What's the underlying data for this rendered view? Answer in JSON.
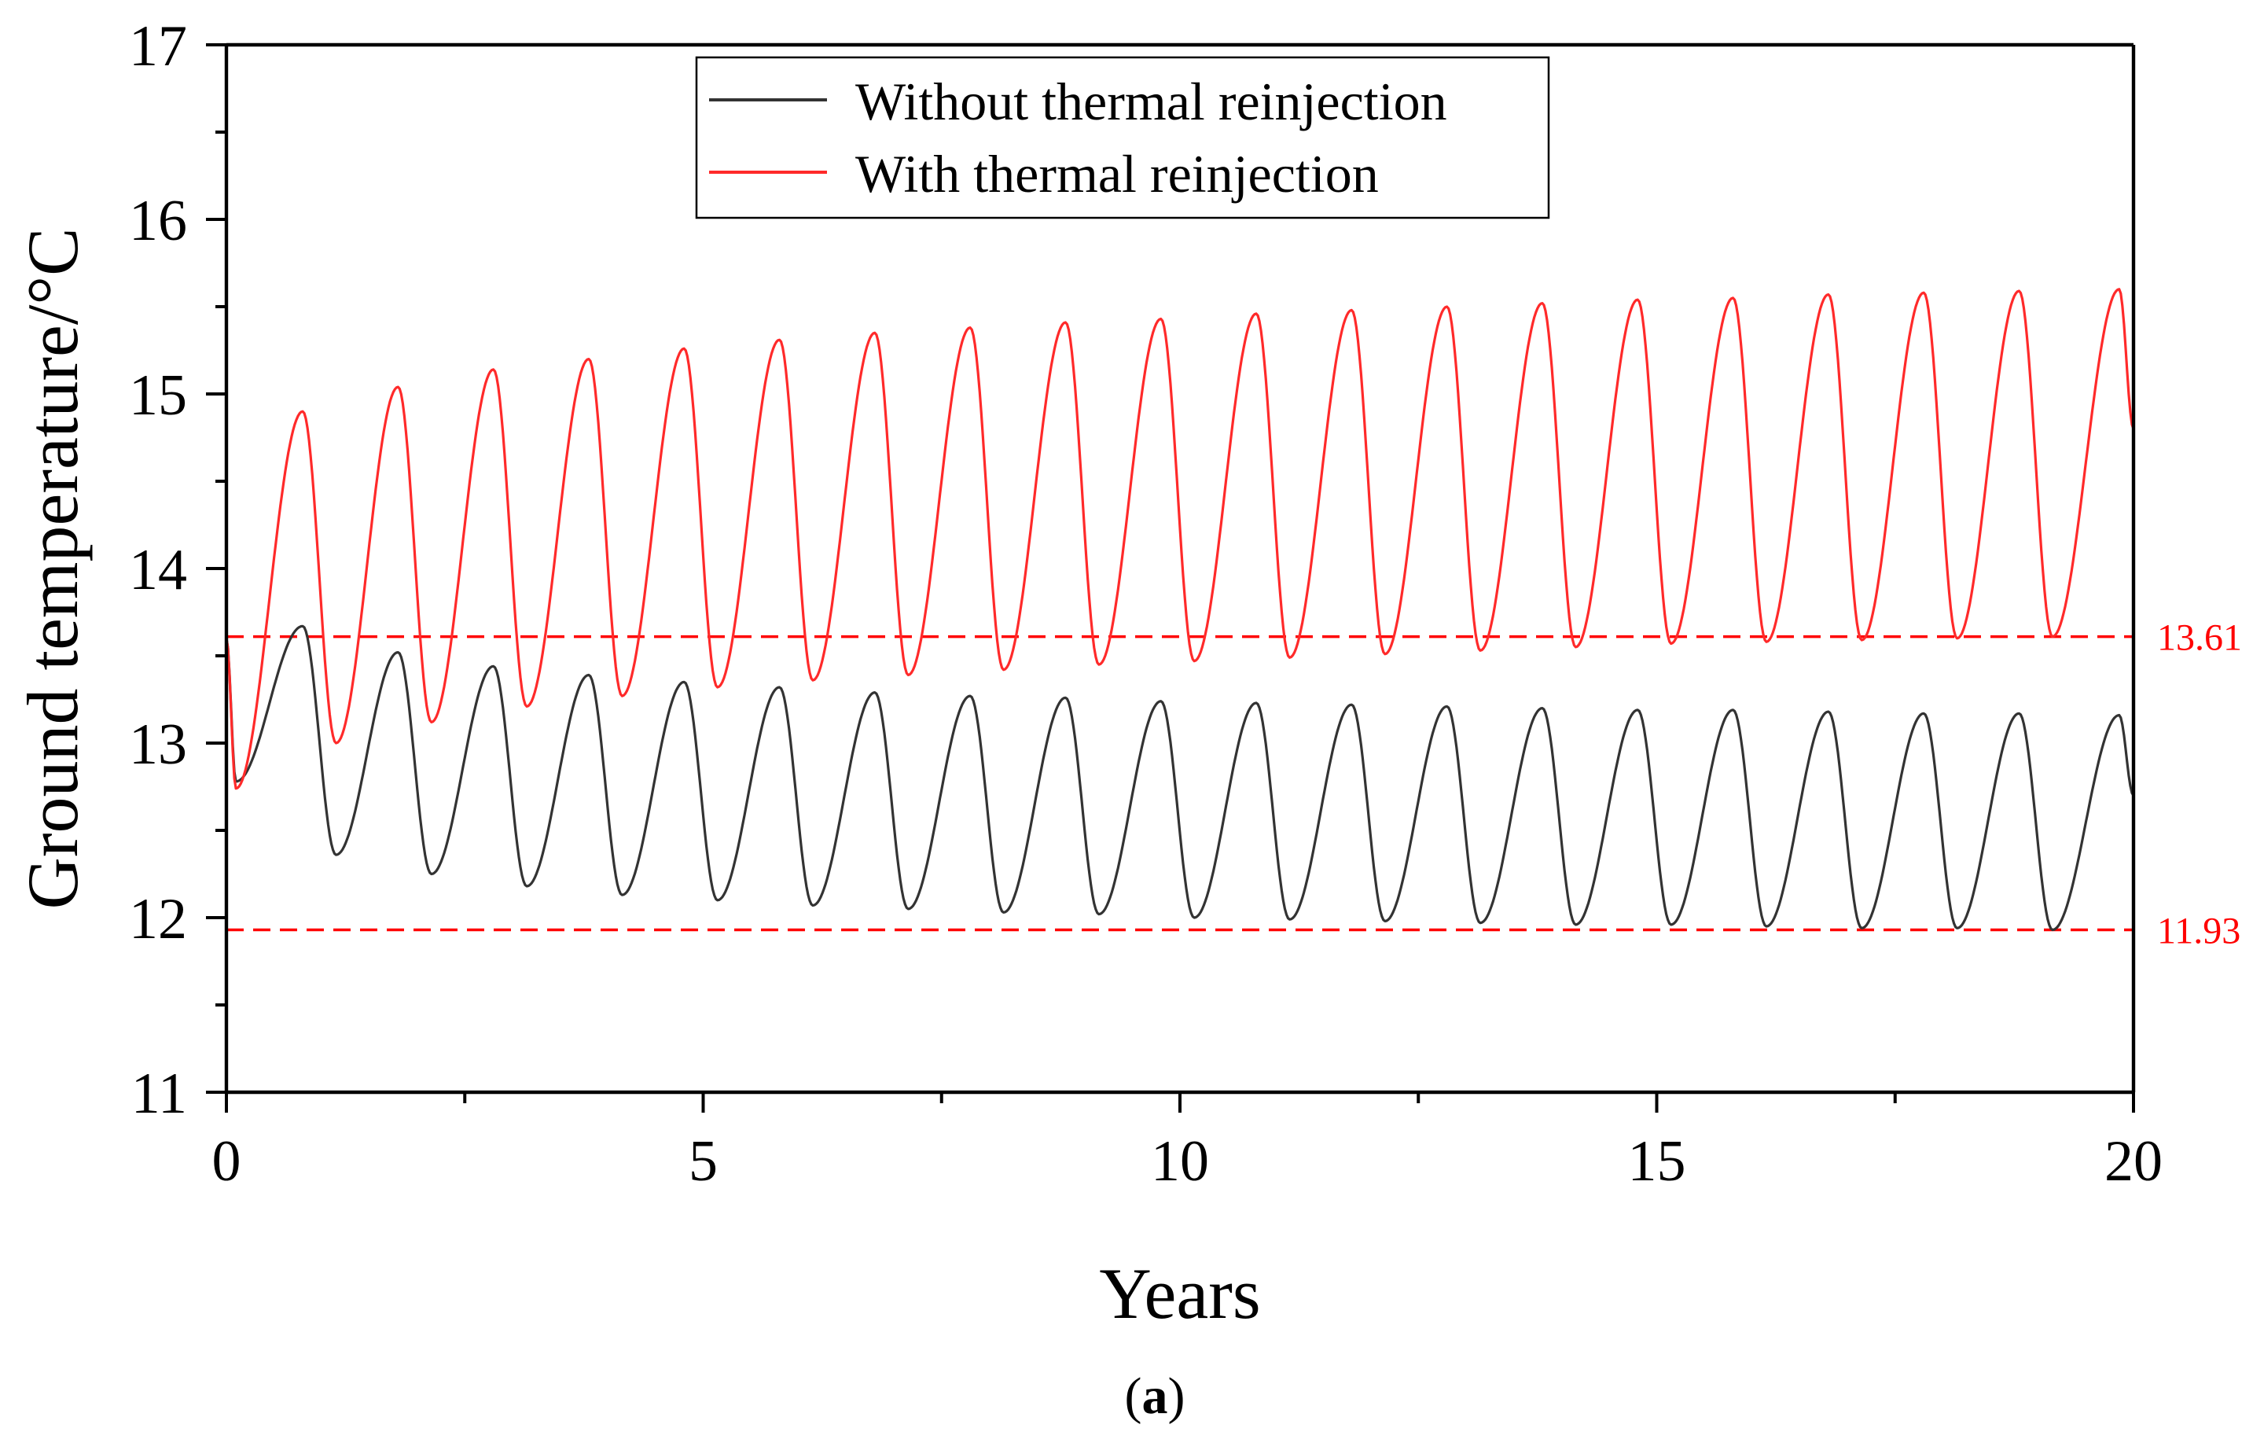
{
  "chart_data": {
    "type": "line",
    "xlabel": "Years",
    "ylabel": "Ground temperature/°C",
    "xlim": [
      0,
      20
    ],
    "ylim": [
      11,
      17
    ],
    "xticks": [
      0,
      5,
      10,
      15,
      20
    ],
    "yticks": [
      11,
      12,
      13,
      14,
      15,
      16,
      17
    ],
    "grid": false,
    "legend_position": "top-center",
    "panel_label": {
      "open": "(",
      "letter": "a",
      "close": ")"
    },
    "reference_lines": [
      {
        "y": 13.61,
        "label": "13.61",
        "color": "#ff0000",
        "style": "dashed"
      },
      {
        "y": 11.93,
        "label": "11.93",
        "color": "#ff0000",
        "style": "dashed"
      }
    ],
    "series": [
      {
        "name": "Without thermal reinjection",
        "color": "#333333",
        "start": 13.6,
        "end": 12.7,
        "annual_peak_years": [
          0.8,
          1.8,
          2.8,
          3.8,
          4.8,
          5.8,
          6.8,
          7.8,
          8.8,
          9.8,
          10.8,
          11.8,
          12.8,
          13.8,
          14.8,
          15.8,
          16.8,
          17.8,
          18.8,
          19.85
        ],
        "annual_peaks": [
          13.67,
          13.52,
          13.44,
          13.39,
          13.35,
          13.32,
          13.29,
          13.27,
          13.26,
          13.24,
          13.23,
          13.22,
          13.21,
          13.2,
          13.19,
          13.19,
          13.18,
          13.17,
          13.17,
          13.16
        ],
        "annual_min_years": [
          0.1,
          1.15,
          2.15,
          3.15,
          4.15,
          5.15,
          6.15,
          7.15,
          8.15,
          9.15,
          10.15,
          11.15,
          12.15,
          13.15,
          14.15,
          15.15,
          16.15,
          17.15,
          18.15,
          19.15
        ],
        "annual_minima": [
          12.78,
          12.36,
          12.25,
          12.18,
          12.13,
          12.1,
          12.07,
          12.05,
          12.03,
          12.02,
          12.0,
          11.99,
          11.98,
          11.97,
          11.96,
          11.96,
          11.95,
          11.94,
          11.94,
          11.93
        ]
      },
      {
        "name": "With thermal reinjection",
        "color": "#ff2a2a",
        "start": 13.6,
        "end": 14.8,
        "annual_peak_years": [
          0.8,
          1.8,
          2.8,
          3.8,
          4.8,
          5.8,
          6.8,
          7.8,
          8.8,
          9.8,
          10.8,
          11.8,
          12.8,
          13.8,
          14.8,
          15.8,
          16.8,
          17.8,
          18.8,
          19.85
        ],
        "annual_peaks": [
          14.9,
          15.04,
          15.14,
          15.2,
          15.26,
          15.31,
          15.35,
          15.38,
          15.41,
          15.43,
          15.46,
          15.48,
          15.5,
          15.52,
          15.54,
          15.55,
          15.57,
          15.58,
          15.59,
          15.6
        ],
        "annual_min_years": [
          0.1,
          1.15,
          2.15,
          3.15,
          4.15,
          5.15,
          6.15,
          7.15,
          8.15,
          9.15,
          10.15,
          11.15,
          12.15,
          13.15,
          14.15,
          15.15,
          16.15,
          17.15,
          18.15,
          19.15
        ],
        "annual_minima": [
          12.74,
          13.0,
          13.12,
          13.21,
          13.27,
          13.32,
          13.36,
          13.39,
          13.42,
          13.45,
          13.47,
          13.49,
          13.51,
          13.53,
          13.55,
          13.57,
          13.58,
          13.59,
          13.6,
          13.61
        ]
      }
    ]
  }
}
